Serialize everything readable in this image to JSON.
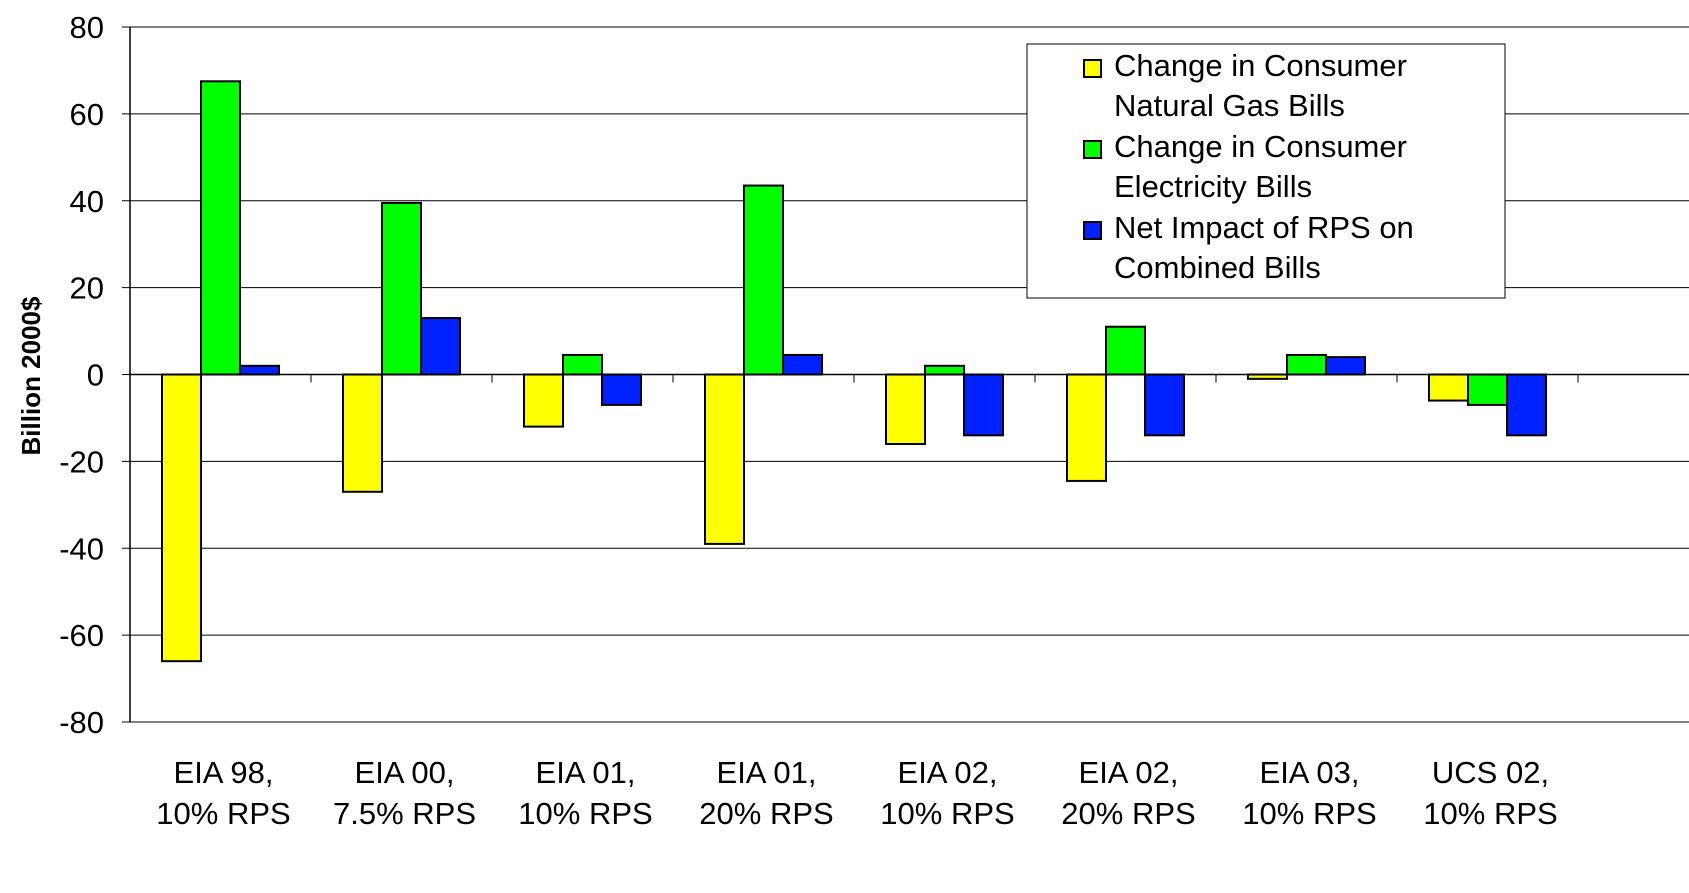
{
  "chart_data": {
    "type": "bar",
    "title": "",
    "xlabel": "",
    "ylabel": "Billion 2000$",
    "ylim": [
      -80,
      80
    ],
    "yticks": [
      -80,
      -60,
      -40,
      -20,
      0,
      20,
      40,
      60,
      80
    ],
    "grid": true,
    "legend_position": "top-right",
    "categories": [
      [
        "EIA 98,",
        "10% RPS"
      ],
      [
        "EIA 00,",
        "7.5% RPS"
      ],
      [
        "EIA 01,",
        "10% RPS"
      ],
      [
        "EIA 01,",
        "20% RPS"
      ],
      [
        "EIA 02,",
        "10% RPS"
      ],
      [
        "EIA 02,",
        "20% RPS"
      ],
      [
        "EIA 03,",
        "10% RPS"
      ],
      [
        "UCS 02,",
        "10% RPS"
      ]
    ],
    "series": [
      {
        "name": [
          "Change in Consumer",
          "Natural Gas Bills"
        ],
        "color": "#FFFF00",
        "values": [
          -66,
          -27,
          -12,
          -39,
          -16,
          -24.5,
          -1,
          -6
        ]
      },
      {
        "name": [
          "Change in Consumer",
          "Electricity Bills"
        ],
        "color": "#00FF00",
        "values": [
          67.5,
          39.5,
          4.5,
          43.5,
          2,
          11,
          4.5,
          -7
        ]
      },
      {
        "name": [
          "Net Impact of RPS on",
          "Combined Bills"
        ],
        "color": "#0022FF",
        "values": [
          2,
          13,
          -7,
          4.5,
          -14,
          -14,
          4,
          -14
        ]
      }
    ]
  }
}
